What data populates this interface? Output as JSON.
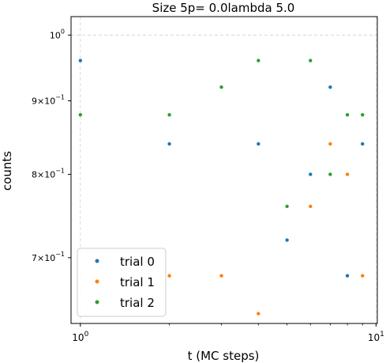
{
  "chart_data": {
    "type": "scatter",
    "title": "Size 5p= 0.0lambda 5.0",
    "xlabel": "t (MC steps)",
    "ylabel": "counts",
    "xscale": "log",
    "yscale": "log",
    "xlim": [
      0.93,
      10.1
    ],
    "ylim": [
      0.63,
      1.03
    ],
    "grid": true,
    "legend_position": "lower-left",
    "x_ticks": [
      {
        "value": 1,
        "base": "10",
        "exp": "0"
      },
      {
        "value": 10,
        "base": "10",
        "exp": "1"
      }
    ],
    "y_ticks": [
      {
        "value": 1.0,
        "mant": "",
        "base": "10",
        "exp": "0"
      },
      {
        "value": 0.9,
        "mant": "9×",
        "base": "10",
        "exp": "−1"
      },
      {
        "value": 0.8,
        "mant": "8×",
        "base": "10",
        "exp": "−1"
      },
      {
        "value": 0.7,
        "mant": "7×",
        "base": "10",
        "exp": "−1"
      }
    ],
    "series": [
      {
        "name": "trial 0",
        "color": "#1f77b4",
        "x": [
          1,
          2,
          4,
          5,
          6,
          7,
          8,
          9
        ],
        "y": [
          0.96,
          0.84,
          0.84,
          0.72,
          0.8,
          0.92,
          0.68,
          0.84
        ]
      },
      {
        "name": "trial 1",
        "color": "#ff7f0e",
        "x": [
          2,
          3,
          4,
          6,
          7,
          8,
          9
        ],
        "y": [
          0.68,
          0.68,
          0.64,
          0.76,
          0.84,
          0.8,
          0.68
        ]
      },
      {
        "name": "trial 2",
        "color": "#2ca02c",
        "x": [
          1,
          2,
          3,
          4,
          5,
          6,
          7,
          8,
          9
        ],
        "y": [
          0.88,
          0.88,
          0.92,
          0.96,
          0.76,
          0.96,
          0.8,
          0.88,
          0.88
        ]
      }
    ]
  }
}
